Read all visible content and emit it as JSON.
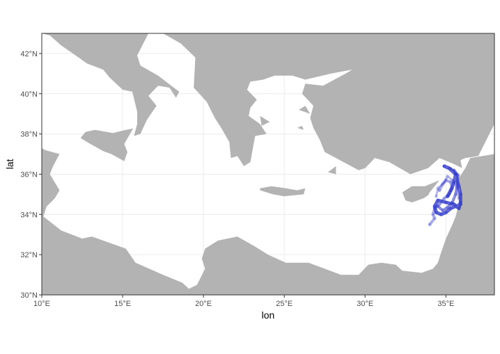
{
  "chart_data": {
    "type": "map",
    "xlabel": "lon",
    "ylabel": "lat",
    "xlim": [
      10,
      38
    ],
    "ylim": [
      30,
      43
    ],
    "x_ticks": [
      10,
      15,
      20,
      25,
      30,
      35
    ],
    "x_tick_labels": [
      "10°E",
      "15°E",
      "20°E",
      "25°E",
      "30°E",
      "35°E"
    ],
    "y_ticks": [
      30,
      32,
      34,
      36,
      38,
      40,
      42
    ],
    "y_tick_labels": [
      "30°N",
      "32°N",
      "34°N",
      "36°N",
      "38°N",
      "40°N",
      "42°N"
    ],
    "grid": true,
    "colors": {
      "land": "#b3b3b3",
      "sea": "#ffffff",
      "track": "#2a32c8"
    },
    "tracks": [
      {
        "points": [
          [
            35.1,
            34.9
          ],
          [
            35.3,
            35.2
          ],
          [
            35.5,
            35.6
          ],
          [
            35.6,
            36.0
          ],
          [
            35.3,
            36.25
          ],
          [
            34.9,
            36.4
          ],
          [
            35.2,
            36.3
          ],
          [
            35.6,
            36.0
          ],
          [
            35.8,
            35.4
          ],
          [
            35.9,
            35.0
          ],
          [
            35.9,
            34.6
          ],
          [
            35.8,
            34.3
          ],
          [
            35.5,
            34.5
          ],
          [
            35.0,
            34.6
          ],
          [
            34.5,
            34.7
          ],
          [
            34.3,
            34.4
          ],
          [
            34.4,
            34.1
          ],
          [
            34.7,
            34.0
          ],
          [
            35.0,
            34.1
          ],
          [
            35.3,
            34.3
          ],
          [
            35.6,
            34.4
          ],
          [
            35.9,
            34.5
          ]
        ],
        "opacity": 0.75,
        "width": 5
      },
      {
        "points": [
          [
            34.6,
            35.2
          ],
          [
            34.8,
            35.5
          ],
          [
            35.0,
            35.7
          ],
          [
            35.3,
            35.6
          ],
          [
            35.4,
            35.3
          ],
          [
            35.2,
            35.0
          ],
          [
            34.9,
            34.8
          ],
          [
            34.6,
            34.5
          ],
          [
            34.3,
            34.3
          ],
          [
            34.2,
            34.0
          ],
          [
            34.3,
            33.8
          ],
          [
            34.0,
            33.5
          ]
        ],
        "opacity": 0.4,
        "width": 4
      },
      {
        "points": [
          [
            34.4,
            34.9
          ],
          [
            34.5,
            35.3
          ],
          [
            34.9,
            35.6
          ],
          [
            35.1,
            35.9
          ],
          [
            35.4,
            35.7
          ],
          [
            35.7,
            35.3
          ],
          [
            35.8,
            34.8
          ]
        ],
        "opacity": 0.35,
        "width": 3
      },
      {
        "points": [
          [
            34.5,
            34.4
          ],
          [
            34.8,
            34.2
          ],
          [
            35.1,
            34.35
          ],
          [
            35.4,
            34.6
          ],
          [
            35.6,
            35.0
          ],
          [
            35.7,
            35.5
          ],
          [
            35.75,
            35.95
          ],
          [
            35.5,
            36.2
          ]
        ],
        "opacity": 0.55,
        "width": 4
      }
    ],
    "land_polygons": [
      [
        [
          10,
          43
        ],
        [
          38,
          43
        ],
        [
          38,
          38.5
        ],
        [
          37.0,
          36.9
        ],
        [
          36.2,
          36.8
        ],
        [
          35.9,
          36.7
        ],
        [
          36.0,
          36.3
        ],
        [
          35.5,
          36.5
        ],
        [
          34.6,
          36.8
        ],
        [
          33.9,
          36.3
        ],
        [
          32.8,
          36.0
        ],
        [
          31.5,
          36.6
        ],
        [
          30.6,
          36.8
        ],
        [
          30.0,
          36.3
        ],
        [
          29.6,
          36.2
        ],
        [
          28.2,
          36.8
        ],
        [
          27.5,
          37.1
        ],
        [
          27.2,
          37.7
        ],
        [
          26.8,
          38.3
        ],
        [
          26.6,
          38.8
        ],
        [
          26.8,
          39.4
        ],
        [
          26.1,
          40.0
        ],
        [
          26.3,
          40.5
        ],
        [
          27.4,
          40.4
        ],
        [
          28.8,
          41.0
        ],
        [
          29.2,
          41.2
        ],
        [
          27.9,
          41.0
        ],
        [
          26.3,
          40.7
        ],
        [
          25.5,
          40.9
        ],
        [
          24.4,
          40.9
        ],
        [
          23.7,
          40.7
        ],
        [
          22.9,
          40.6
        ],
        [
          22.7,
          40.2
        ],
        [
          23.3,
          39.7
        ],
        [
          22.9,
          39.3
        ],
        [
          22.8,
          38.9
        ],
        [
          23.5,
          38.5
        ],
        [
          23.9,
          38.0
        ],
        [
          23.2,
          37.9
        ],
        [
          22.9,
          36.6
        ],
        [
          22.5,
          36.4
        ],
        [
          22.1,
          36.9
        ],
        [
          21.7,
          36.8
        ],
        [
          21.6,
          37.6
        ],
        [
          21.1,
          38.3
        ],
        [
          20.7,
          38.8
        ],
        [
          20.2,
          39.6
        ],
        [
          19.4,
          40.3
        ],
        [
          19.5,
          41.8
        ],
        [
          18.6,
          42.5
        ],
        [
          17.5,
          43.0
        ],
        [
          16.6,
          43.0
        ],
        [
          15.9,
          41.9
        ],
        [
          16.1,
          41.4
        ],
        [
          17.2,
          40.9
        ],
        [
          18.5,
          40.1
        ],
        [
          18.3,
          39.8
        ],
        [
          17.9,
          40.3
        ],
        [
          17.2,
          40.4
        ],
        [
          16.6,
          39.9
        ],
        [
          17.1,
          39.4
        ],
        [
          16.5,
          38.7
        ],
        [
          16.1,
          38.0
        ],
        [
          15.7,
          37.9
        ],
        [
          15.9,
          38.5
        ],
        [
          15.9,
          39.1
        ],
        [
          15.6,
          40.1
        ],
        [
          15.0,
          40.2
        ],
        [
          14.2,
          40.8
        ],
        [
          13.8,
          41.2
        ],
        [
          12.8,
          41.5
        ],
        [
          12.1,
          41.9
        ],
        [
          11.2,
          42.4
        ],
        [
          10.5,
          42.9
        ],
        [
          10,
          43
        ]
      ],
      [
        [
          15.65,
          38.27
        ],
        [
          15.2,
          38.2
        ],
        [
          14.4,
          38.05
        ],
        [
          13.3,
          38.2
        ],
        [
          12.7,
          38.1
        ],
        [
          12.4,
          37.8
        ],
        [
          12.9,
          37.55
        ],
        [
          13.8,
          37.15
        ],
        [
          14.3,
          37.0
        ],
        [
          15.1,
          36.65
        ],
        [
          15.3,
          37.1
        ],
        [
          15.1,
          37.5
        ],
        [
          15.65,
          38.27
        ]
      ],
      [
        [
          10,
          37.3
        ],
        [
          10.2,
          37.2
        ],
        [
          11.1,
          37.0
        ],
        [
          10.7,
          36.4
        ],
        [
          10.5,
          36.0
        ],
        [
          11.1,
          35.2
        ],
        [
          10.8,
          34.8
        ],
        [
          10.3,
          34.4
        ],
        [
          10.1,
          33.9
        ],
        [
          11.2,
          33.2
        ],
        [
          12.5,
          32.8
        ],
        [
          13.1,
          32.9
        ],
        [
          15.2,
          32.3
        ],
        [
          15.8,
          31.6
        ],
        [
          17.5,
          31.0
        ],
        [
          18.7,
          30.6
        ],
        [
          19.1,
          30.3
        ],
        [
          19.6,
          30.5
        ],
        [
          20.1,
          31.3
        ],
        [
          19.9,
          31.8
        ],
        [
          20.1,
          32.3
        ],
        [
          20.9,
          32.7
        ],
        [
          22.1,
          32.9
        ],
        [
          23.2,
          32.4
        ],
        [
          24.0,
          32.0
        ],
        [
          25.1,
          31.6
        ],
        [
          26.5,
          31.6
        ],
        [
          27.5,
          31.3
        ],
        [
          28.5,
          31.0
        ],
        [
          29.6,
          31.0
        ],
        [
          30.2,
          31.5
        ],
        [
          31.0,
          31.6
        ],
        [
          31.9,
          31.5
        ],
        [
          32.3,
          31.2
        ],
        [
          33.5,
          31.1
        ],
        [
          34.2,
          31.3
        ],
        [
          34.5,
          31.6
        ],
        [
          34.7,
          32.1
        ],
        [
          35.0,
          32.8
        ],
        [
          35.4,
          33.5
        ],
        [
          35.6,
          33.9
        ],
        [
          35.8,
          34.5
        ],
        [
          35.9,
          35.2
        ],
        [
          35.8,
          35.8
        ],
        [
          36.2,
          36.3
        ],
        [
          36.5,
          36.8
        ],
        [
          38,
          37
        ],
        [
          38,
          30
        ],
        [
          10,
          30
        ],
        [
          10,
          37.3
        ]
      ],
      [
        [
          32.3,
          35.1
        ],
        [
          32.9,
          35.4
        ],
        [
          33.7,
          35.4
        ],
        [
          34.6,
          35.7
        ],
        [
          34.0,
          35.1
        ],
        [
          33.9,
          34.95
        ],
        [
          33.6,
          34.8
        ],
        [
          32.9,
          34.6
        ],
        [
          32.5,
          34.7
        ],
        [
          32.3,
          35.1
        ]
      ],
      [
        [
          23.5,
          35.3
        ],
        [
          24.2,
          35.4
        ],
        [
          25.1,
          35.3
        ],
        [
          25.8,
          35.2
        ],
        [
          26.3,
          35.3
        ],
        [
          26.2,
          35.0
        ],
        [
          25.0,
          34.9
        ],
        [
          24.3,
          35.0
        ],
        [
          23.5,
          35.2
        ],
        [
          23.5,
          35.3
        ]
      ],
      [
        [
          27.7,
          36.1
        ],
        [
          28.2,
          36.4
        ],
        [
          28.2,
          36.0
        ],
        [
          27.7,
          36.1
        ]
      ],
      [
        [
          23.5,
          38.9
        ],
        [
          24.1,
          38.6
        ],
        [
          23.6,
          38.4
        ],
        [
          23.5,
          38.9
        ]
      ],
      [
        [
          26.1,
          38.4
        ],
        [
          26.2,
          38.2
        ],
        [
          25.8,
          38.3
        ],
        [
          26.1,
          38.4
        ]
      ],
      [
        [
          26.3,
          39.4
        ],
        [
          26.6,
          39.0
        ],
        [
          25.9,
          39.2
        ],
        [
          26.3,
          39.4
        ]
      ],
      [
        [
          8,
          41
        ],
        [
          9.6,
          41
        ],
        [
          9.5,
          39.2
        ],
        [
          8.4,
          39.0
        ],
        [
          8,
          39.5
        ],
        [
          8,
          41
        ]
      ],
      [
        [
          8,
          43
        ],
        [
          9.6,
          43
        ],
        [
          9.4,
          41.4
        ],
        [
          8,
          41.5
        ],
        [
          8,
          43
        ]
      ]
    ]
  }
}
